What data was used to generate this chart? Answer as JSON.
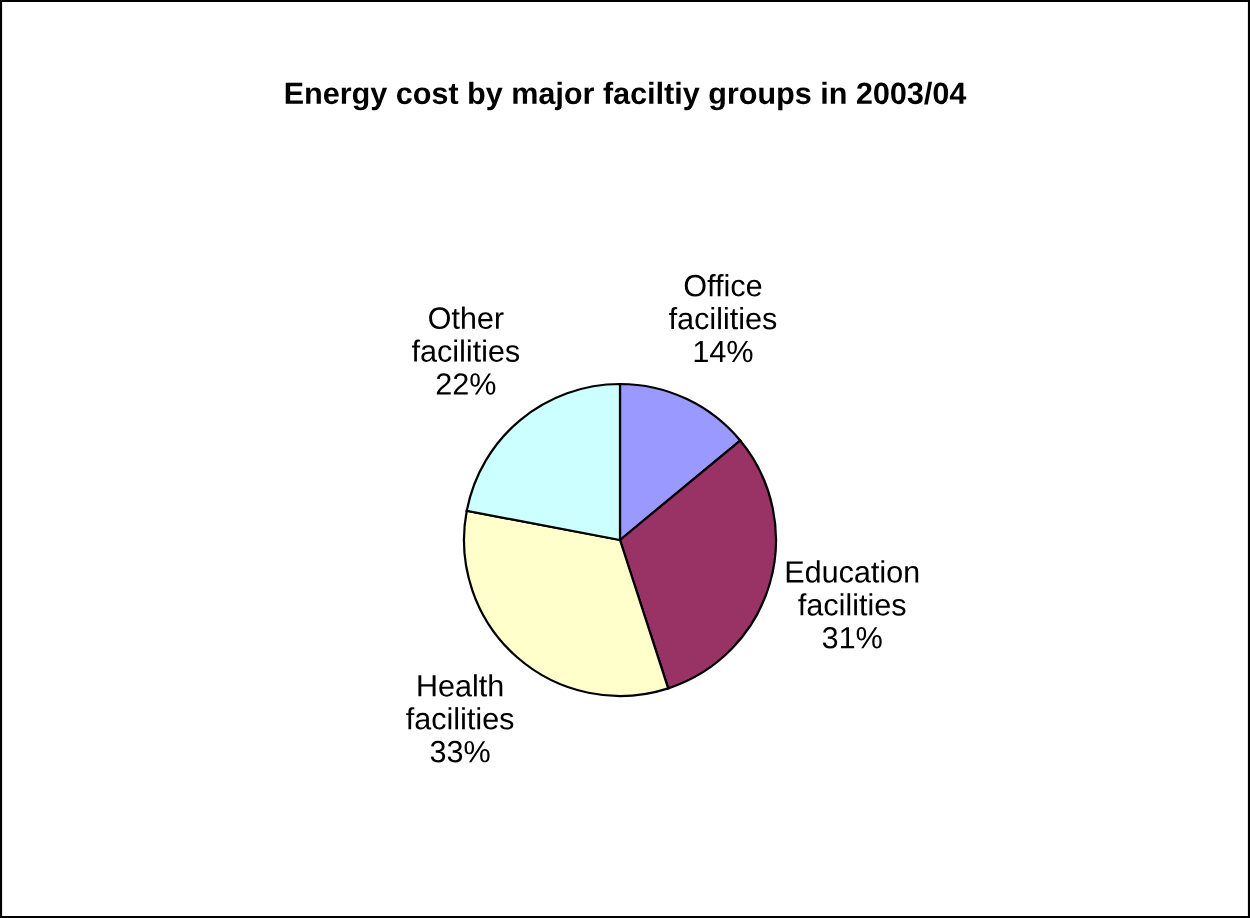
{
  "chart_data": {
    "type": "pie",
    "title": "Energy cost by major faciltiy groups in 2003/04",
    "categories": [
      "Office facilities",
      "Education facilities",
      "Health facilities",
      "Other facilities"
    ],
    "values": [
      14,
      31,
      33,
      22
    ],
    "value_labels": [
      "14%",
      "31%",
      "33%",
      "22%"
    ],
    "colors": [
      "#9999ff",
      "#993366",
      "#ffffcc",
      "#ccffff"
    ]
  }
}
